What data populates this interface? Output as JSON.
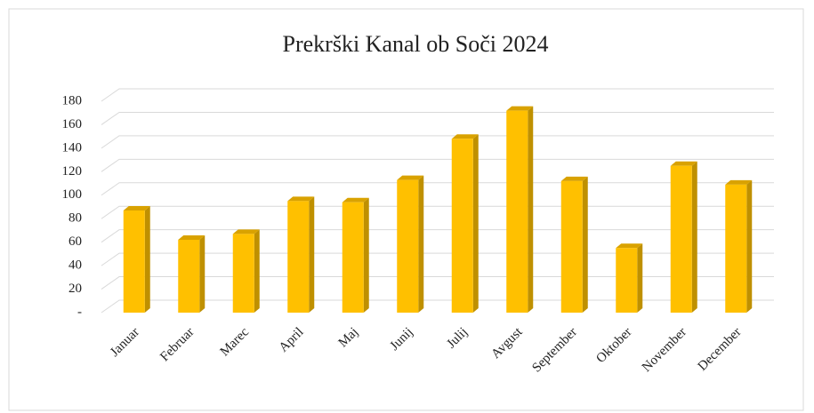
{
  "chart_data": {
    "type": "bar3d",
    "title": "Prekrški Kanal ob Soči 2024",
    "categories": [
      "Januar",
      "Februar",
      "Marec",
      "April",
      "Maj",
      "Junij",
      "Julij",
      "Avgust",
      "September",
      "Oktober",
      "November",
      "December"
    ],
    "values": [
      87,
      62,
      67,
      95,
      94,
      113,
      148,
      172,
      112,
      55,
      125,
      109
    ],
    "color": "#ffc000",
    "ylim": [
      0,
      180
    ],
    "yticks": [
      {
        "value": 0,
        "label": "-"
      },
      20,
      40,
      60,
      80,
      100,
      120,
      140,
      160,
      180
    ],
    "grid": true
  }
}
